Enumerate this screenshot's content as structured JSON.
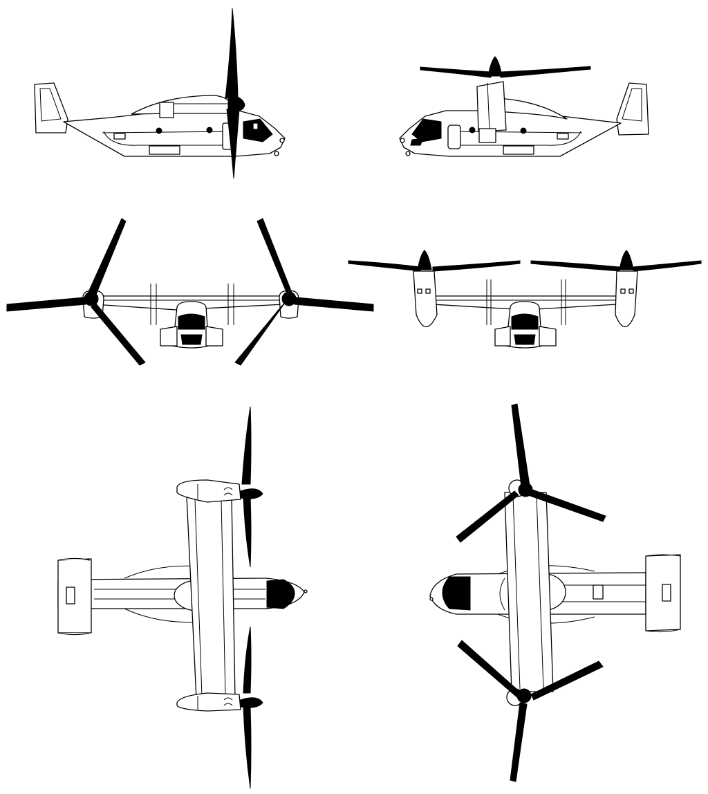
{
  "figure": {
    "kind": "orthographic-views",
    "subject_icon": "tiltrotor-aircraft-icon",
    "colors": {
      "outline": "#000000",
      "fill": "#ffffff",
      "blades": "#000000"
    },
    "views": [
      {
        "id": "left-side",
        "rotor_blades": 3
      },
      {
        "id": "right-side",
        "rotor_blades": 3
      },
      {
        "id": "front-airplane-mode",
        "rotor_blades": 3
      },
      {
        "id": "front-helicopter-mode",
        "rotor_blades": 3
      },
      {
        "id": "top-helicopter-mode",
        "rotor_blades": 3
      },
      {
        "id": "bottom-airplane-mode",
        "rotor_blades": 3
      }
    ]
  }
}
